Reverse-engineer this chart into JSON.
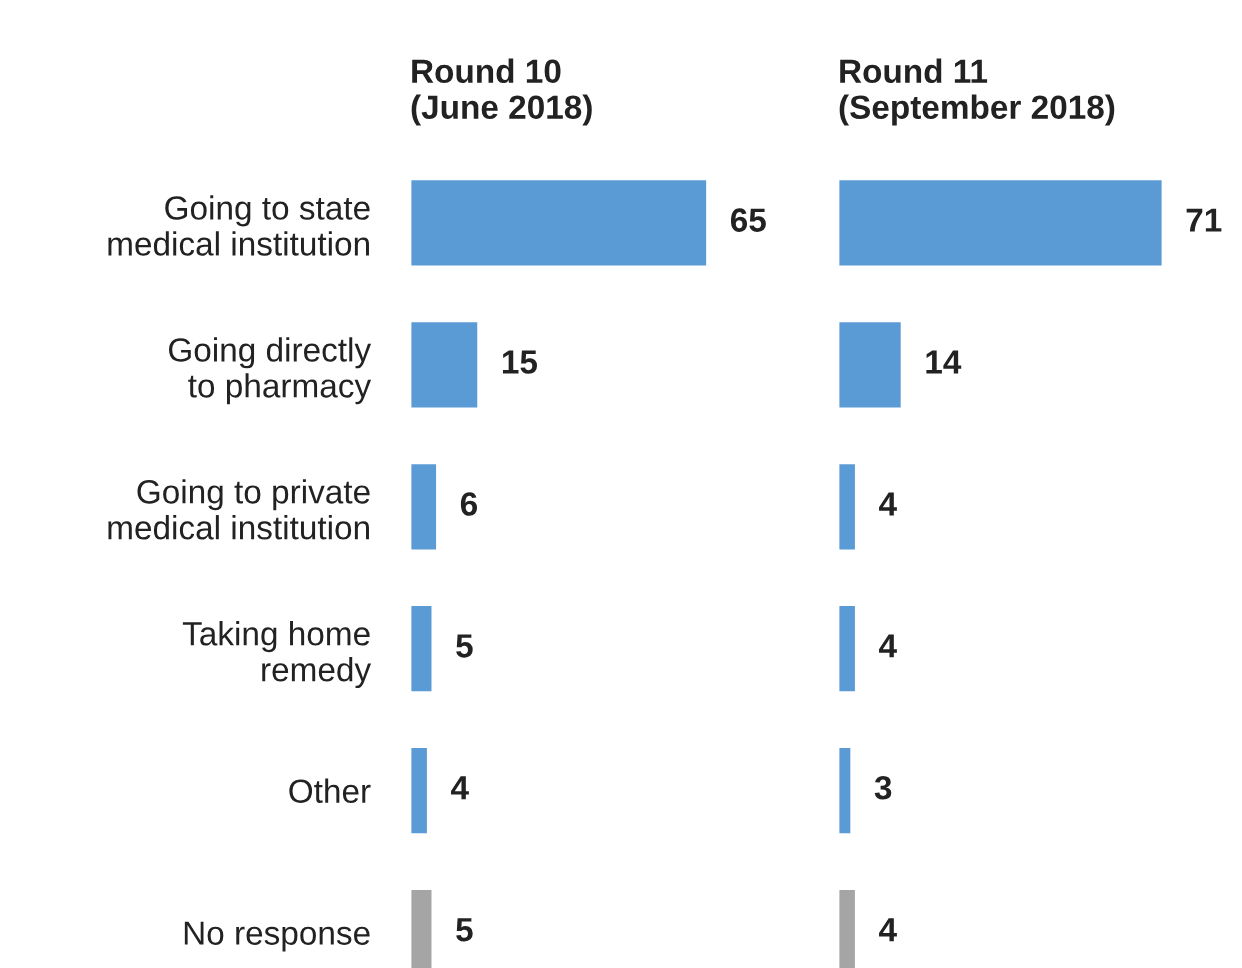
{
  "chart_data": [
    {
      "type": "bar",
      "orientation": "horizontal",
      "title": "Round 10\n(June 2018)",
      "categories": [
        "Going to state\nmedical institution",
        "Going directly\nto pharmacy",
        "Going to private\nmedical institution",
        "Taking home\nremedy",
        "Other",
        "No response"
      ],
      "values": [
        65,
        15,
        6,
        5,
        4,
        5
      ],
      "colors": [
        "#5b9bd5",
        "#5b9bd5",
        "#5b9bd5",
        "#5b9bd5",
        "#5b9bd5",
        "#a5a5a5"
      ],
      "data_labels": true,
      "tick_labels": "y",
      "grid": false,
      "legend": false
    },
    {
      "type": "bar",
      "orientation": "horizontal",
      "title": "Round 11\n(September 2018)",
      "categories": [
        null,
        null,
        null,
        null,
        null,
        null
      ],
      "values": [
        71,
        14,
        4,
        4,
        3,
        4
      ],
      "colors": [
        "#5b9bd5",
        "#5b9bd5",
        "#5b9bd5",
        "#5b9bd5",
        "#5b9bd5",
        "#a5a5a5"
      ],
      "data_labels": true,
      "tick_labels": false,
      "grid": false,
      "legend": false
    }
  ]
}
